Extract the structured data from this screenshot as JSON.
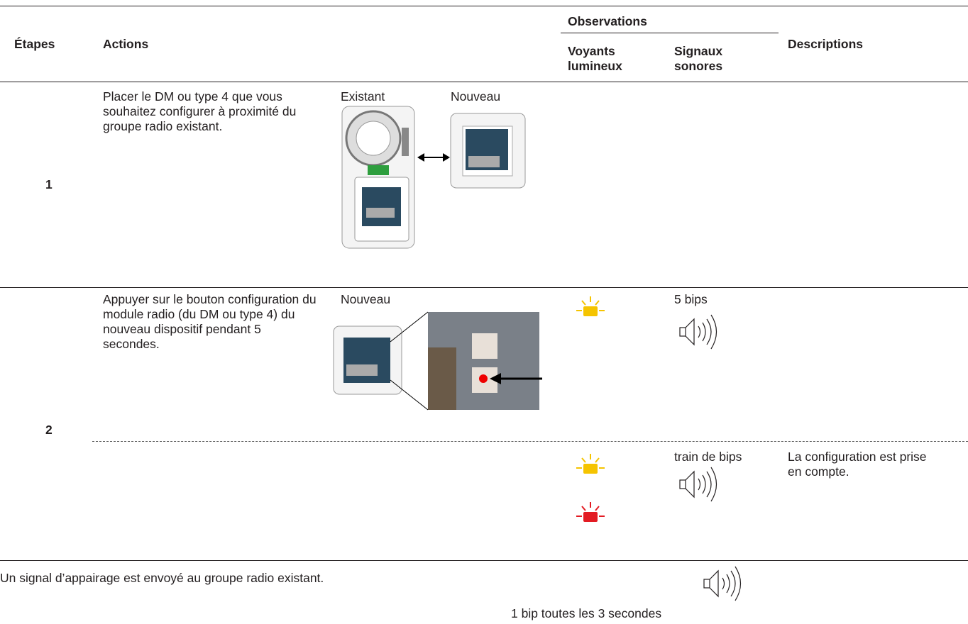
{
  "header": {
    "etapes": "Étapes",
    "actions": "Actions",
    "observations": "Observations",
    "voyants": "Voyants lumineux",
    "signaux": "Signaux sonores",
    "descriptions": "Descriptions"
  },
  "steps": [
    {
      "number": "1",
      "action": "Placer le DM ou type 4 que vous souhaitez configurer à proximité du groupe radio existant.",
      "image_labels": [
        "Existant",
        "Nouveau"
      ]
    },
    {
      "number": "2",
      "action": "Appuyer sur le bouton configuration du module radio (du DM ou type 4) du nouveau dispositif pendant 5 secondes.",
      "image_labels": [
        "Nouveau"
      ],
      "observations": [
        {
          "sound": "5 bips"
        },
        {
          "sound": "train de bips",
          "description": "La configuration est prise en compte."
        }
      ]
    }
  ],
  "footer": {
    "text": "Un signal d’appairage est envoyé au groupe radio existant.",
    "sound": "1 bip toutes les 3 secondes"
  }
}
